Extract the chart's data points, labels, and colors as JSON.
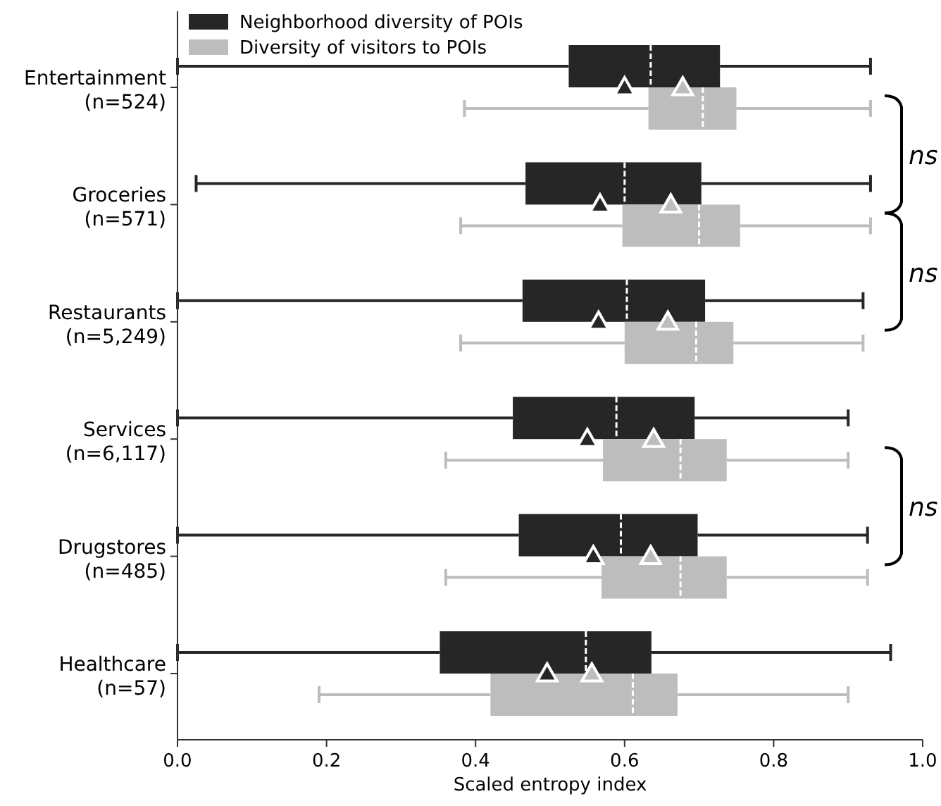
{
  "chart_data": {
    "type": "box",
    "orientation": "horizontal",
    "xlabel": "Scaled entropy index",
    "xlim": [
      0,
      1
    ],
    "xticks": [
      {
        "value": 0,
        "label": "0.0"
      },
      0.2,
      0.4,
      0.6,
      0.8,
      {
        "value": 1,
        "label": "1.0"
      }
    ],
    "categories": [
      "Entertainment\n(n=524)",
      "Groceries\n(n=571)",
      "Restaurants\n(n=5,249)",
      "Services\n(n=6,117)",
      "Drugstores\n(n=485)",
      "Healthcare\n(n=57)"
    ],
    "series": [
      {
        "name": "Neighborhood diversity of POIs",
        "color": "#262626",
        "boxes": [
          {
            "low": 0.0,
            "q1": 0.525,
            "median": 0.635,
            "q3": 0.728,
            "high": 0.93,
            "mean": 0.6
          },
          {
            "low": 0.025,
            "q1": 0.467,
            "median": 0.6,
            "q3": 0.703,
            "high": 0.93,
            "mean": 0.567
          },
          {
            "low": 0.0,
            "q1": 0.463,
            "median": 0.603,
            "q3": 0.708,
            "high": 0.92,
            "mean": 0.565
          },
          {
            "low": 0.0,
            "q1": 0.45,
            "median": 0.589,
            "q3": 0.694,
            "high": 0.9,
            "mean": 0.55
          },
          {
            "low": 0.0,
            "q1": 0.458,
            "median": 0.595,
            "q3": 0.698,
            "high": 0.926,
            "mean": 0.558
          },
          {
            "low": 0.0,
            "q1": 0.352,
            "median": 0.548,
            "q3": 0.636,
            "high": 0.957,
            "mean": 0.496
          }
        ]
      },
      {
        "name": "Diversity of visitors to POIs",
        "color": "#bdbdbd",
        "boxes": [
          {
            "low": 0.385,
            "q1": 0.632,
            "median": 0.705,
            "q3": 0.75,
            "high": 0.93,
            "mean": 0.678
          },
          {
            "low": 0.38,
            "q1": 0.597,
            "median": 0.7,
            "q3": 0.755,
            "high": 0.93,
            "mean": 0.662
          },
          {
            "low": 0.38,
            "q1": 0.6,
            "median": 0.696,
            "q3": 0.746,
            "high": 0.92,
            "mean": 0.658
          },
          {
            "low": 0.36,
            "q1": 0.571,
            "median": 0.675,
            "q3": 0.737,
            "high": 0.9,
            "mean": 0.639
          },
          {
            "low": 0.36,
            "q1": 0.569,
            "median": 0.675,
            "q3": 0.737,
            "high": 0.926,
            "mean": 0.635
          },
          {
            "low": 0.19,
            "q1": 0.42,
            "median": 0.611,
            "q3": 0.671,
            "high": 0.9,
            "mean": 0.556
          }
        ]
      }
    ],
    "annotations": [
      "ns",
      "ns",
      "ns"
    ],
    "legend": "top left",
    "marker": "triangle",
    "grid": false
  }
}
